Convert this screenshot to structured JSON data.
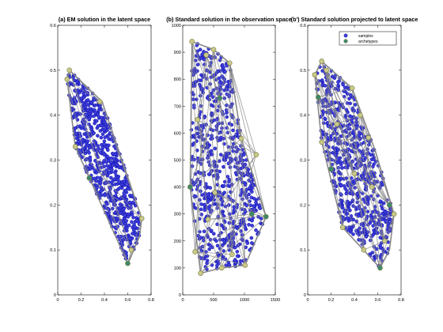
{
  "chart_data": [
    {
      "type": "scatter",
      "title": "(a) EM solution in the latent space",
      "xlim": [
        0,
        0.8
      ],
      "ylim": [
        0,
        0.6
      ],
      "xticks": [
        "0",
        "0.2",
        "0.4",
        "0.6",
        "0.8"
      ],
      "yticks": [
        "0",
        "0.1",
        "0.2",
        "0.3",
        "0.4",
        "0.5",
        "0.6"
      ],
      "xtick_values": [
        0,
        0.2,
        0.4,
        0.6,
        0.8
      ],
      "ytick_values": [
        0,
        0.1,
        0.2,
        0.3,
        0.4,
        0.5,
        0.6
      ],
      "hull": [
        [
          0.08,
          0.48
        ],
        [
          0.1,
          0.5
        ],
        [
          0.38,
          0.43
        ],
        [
          0.72,
          0.17
        ],
        [
          0.7,
          0.13
        ],
        [
          0.62,
          0.08
        ],
        [
          0.6,
          0.07
        ],
        [
          0.15,
          0.33
        ],
        [
          0.08,
          0.48
        ]
      ],
      "archetypes": [
        [
          0.1,
          0.5
        ],
        [
          0.36,
          0.43
        ],
        [
          0.72,
          0.17
        ],
        [
          0.6,
          0.07
        ],
        [
          0.15,
          0.33
        ],
        [
          0.08,
          0.48
        ],
        [
          0.63,
          0.1
        ],
        [
          0.27,
          0.26
        ]
      ],
      "n_samples": 650,
      "legend": null,
      "grid": false
    },
    {
      "type": "scatter",
      "title": "(b) Standard solution in the observation space",
      "xlim": [
        0,
        1500
      ],
      "ylim": [
        0,
        1000
      ],
      "xticks": [
        "0",
        "500",
        "1000",
        "1500"
      ],
      "yticks": [
        "0",
        "100",
        "200",
        "300",
        "400",
        "500",
        "600",
        "700",
        "800",
        "900",
        "1000"
      ],
      "xtick_values": [
        0,
        500,
        1000,
        1500
      ],
      "ytick_values": [
        0,
        100,
        200,
        300,
        400,
        500,
        600,
        700,
        800,
        900,
        1000
      ],
      "hull": [
        [
          150,
          940
        ],
        [
          500,
          910
        ],
        [
          760,
          860
        ],
        [
          950,
          580
        ],
        [
          1350,
          290
        ],
        [
          1010,
          110
        ],
        [
          630,
          100
        ],
        [
          290,
          80
        ],
        [
          120,
          400
        ],
        [
          150,
          940
        ]
      ],
      "archetypes": [
        [
          150,
          940
        ],
        [
          500,
          910
        ],
        [
          760,
          860
        ],
        [
          1350,
          290
        ],
        [
          1010,
          110
        ],
        [
          630,
          100
        ],
        [
          290,
          80
        ],
        [
          120,
          400
        ],
        [
          240,
          650
        ],
        [
          410,
          280
        ],
        [
          1190,
          520
        ],
        [
          600,
          730
        ],
        [
          520,
          380
        ],
        [
          800,
          150
        ],
        [
          200,
          160
        ],
        [
          1120,
          300
        ],
        [
          380,
          890
        ],
        [
          950,
          580
        ]
      ],
      "n_samples": 650,
      "legend": null,
      "grid": false
    },
    {
      "type": "scatter",
      "title": "(b') Standard solution projected to latent space",
      "xlim": [
        0,
        0.8
      ],
      "ylim": [
        0,
        0.6
      ],
      "xticks": [
        "0",
        "0.2",
        "0.4",
        "0.6",
        "0.8"
      ],
      "yticks": [
        "0",
        "0.1",
        "0.2",
        "0.3",
        "0.4",
        "0.5",
        "0.6"
      ],
      "xtick_values": [
        0,
        0.2,
        0.4,
        0.6,
        0.8
      ],
      "ytick_values": [
        0,
        0.1,
        0.2,
        0.3,
        0.4,
        0.5,
        0.6
      ],
      "hull": [
        [
          0.06,
          0.49
        ],
        [
          0.12,
          0.52
        ],
        [
          0.38,
          0.46
        ],
        [
          0.58,
          0.32
        ],
        [
          0.74,
          0.18
        ],
        [
          0.7,
          0.1
        ],
        [
          0.62,
          0.06
        ],
        [
          0.3,
          0.15
        ],
        [
          0.12,
          0.34
        ],
        [
          0.06,
          0.49
        ]
      ],
      "archetypes": [
        [
          0.12,
          0.52
        ],
        [
          0.38,
          0.46
        ],
        [
          0.74,
          0.18
        ],
        [
          0.62,
          0.06
        ],
        [
          0.3,
          0.15
        ],
        [
          0.12,
          0.34
        ],
        [
          0.06,
          0.49
        ],
        [
          0.2,
          0.28
        ],
        [
          0.45,
          0.4
        ],
        [
          0.55,
          0.24
        ],
        [
          0.66,
          0.12
        ],
        [
          0.09,
          0.44
        ],
        [
          0.4,
          0.27
        ],
        [
          0.52,
          0.35
        ],
        [
          0.16,
          0.5
        ],
        [
          0.7,
          0.2
        ],
        [
          0.25,
          0.38
        ],
        [
          0.48,
          0.1
        ]
      ],
      "n_samples": 650,
      "legend": {
        "position": "top-right",
        "entries": [
          "samples",
          "archetypes"
        ]
      },
      "grid": false
    }
  ],
  "colors": {
    "sample_fill": "#3d3dd6",
    "sample_edge": "#0000aa",
    "archetype_fill": "#c8c98a",
    "archetype_dark_fill": "#3d8a6a",
    "archetype_edge": "#7c7d40",
    "hull_line": "#888888"
  }
}
